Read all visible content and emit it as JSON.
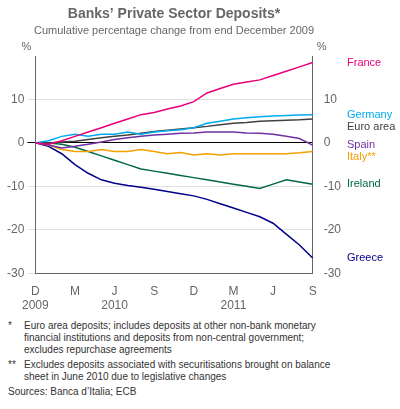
{
  "chart_data": {
    "type": "line",
    "title": "Banks’ Private Sector Deposits*",
    "subtitle": "Cumulative percentage change from end December 2009",
    "categories": [
      "D",
      null,
      null,
      "M",
      null,
      null,
      "J",
      null,
      null,
      "S",
      null,
      null,
      "D",
      null,
      null,
      "M",
      null,
      null,
      "J",
      null,
      null,
      "S"
    ],
    "x_years": [
      "2009",
      null,
      null,
      null,
      null,
      null,
      "2010",
      null,
      null,
      null,
      null,
      null,
      null,
      null,
      null,
      "2011",
      null,
      null,
      null,
      null,
      null,
      null
    ],
    "series": [
      {
        "name": "France",
        "color": "#e8007c",
        "values": [
          0.0,
          -0.3,
          0.5,
          1.5,
          2.5,
          3.5,
          4.5,
          5.5,
          6.5,
          7.0,
          7.8,
          8.5,
          9.5,
          11.5,
          12.5,
          13.5,
          14.0,
          14.5,
          15.5,
          16.5,
          17.5,
          18.5
        ]
      },
      {
        "name": "Germany",
        "color": "#00aaee",
        "values": [
          0.0,
          0.5,
          1.5,
          2.0,
          1.5,
          2.0,
          2.0,
          2.5,
          2.0,
          2.5,
          2.8,
          3.0,
          3.5,
          4.5,
          5.0,
          5.5,
          5.8,
          6.0,
          6.2,
          6.3,
          6.4,
          6.5
        ]
      },
      {
        "name": "Euro area",
        "color": "#404040",
        "values": [
          0.0,
          0.0,
          0.2,
          0.4,
          0.8,
          1.2,
          1.5,
          1.8,
          2.2,
          2.6,
          2.9,
          3.2,
          3.5,
          3.8,
          4.2,
          4.5,
          4.7,
          5.0,
          5.1,
          5.2,
          5.3,
          5.5
        ]
      },
      {
        "name": "Spain",
        "color": "#7030a0",
        "values": [
          0.0,
          -0.5,
          -1.2,
          -0.8,
          -0.3,
          0.2,
          0.8,
          1.2,
          1.5,
          1.8,
          2.0,
          2.2,
          2.3,
          2.5,
          2.5,
          2.5,
          2.3,
          2.2,
          2.0,
          1.5,
          1.0,
          -0.5
        ]
      },
      {
        "name": "Italy**",
        "color": "#f4a000",
        "values": [
          0.0,
          -0.5,
          -1.5,
          -2.0,
          -2.0,
          -1.5,
          -2.0,
          -2.0,
          -1.5,
          -2.0,
          -2.5,
          -2.2,
          -2.8,
          -2.5,
          -2.8,
          -2.5,
          -2.5,
          -2.5,
          -2.5,
          -2.5,
          -2.3,
          -2.0
        ]
      },
      {
        "name": "Ireland",
        "color": "#006940",
        "values": [
          0.0,
          0.0,
          -0.3,
          -1.0,
          -2.0,
          -3.0,
          -4.0,
          -5.0,
          -6.0,
          -6.5,
          -7.0,
          -7.5,
          -8.0,
          -8.5,
          -9.0,
          -9.5,
          -10.0,
          -10.5,
          -9.5,
          -8.5,
          -9.0,
          -9.5
        ]
      },
      {
        "name": "Greece",
        "color": "#00008b",
        "values": [
          0.0,
          -0.8,
          -2.5,
          -5.0,
          -7.0,
          -8.5,
          -9.3,
          -9.8,
          -10.2,
          -10.7,
          -11.2,
          -11.7,
          -12.2,
          -13.0,
          -14.0,
          -15.0,
          -16.0,
          -17.0,
          -18.5,
          -21.0,
          -23.5,
          -26.5
        ]
      }
    ],
    "ylabel": "%",
    "y2label": "%",
    "ylim": [
      -30,
      20
    ],
    "yticks": [
      -30,
      -20,
      -10,
      0,
      10
    ],
    "y2lim": [
      -30,
      20
    ],
    "y2ticks": [
      -30,
      -20,
      -10,
      0,
      10
    ],
    "grid": true,
    "footnotes": [
      {
        "mark": "*",
        "lines": [
          "Euro area deposits; includes deposits at other non-bank monetary",
          "financial institutions and deposits from non-central government;",
          "excludes repurchase agreements"
        ]
      },
      {
        "mark": "**",
        "lines": [
          "Excludes deposits associated with securitisations brought on balance",
          "sheet in June 2010 due to legislative changes"
        ]
      }
    ],
    "source": "Sources: Banca d’Italia; ECB"
  }
}
